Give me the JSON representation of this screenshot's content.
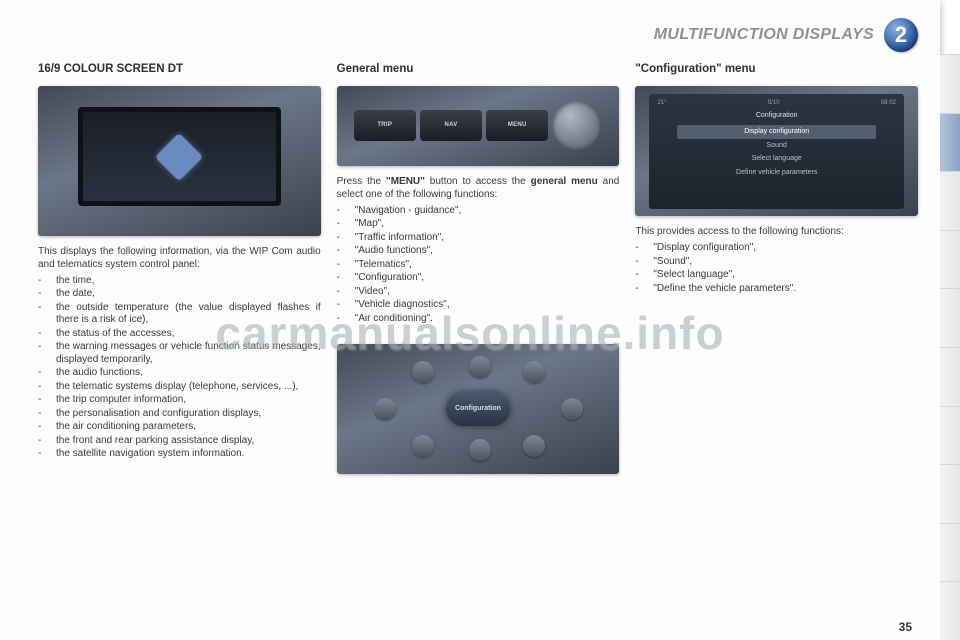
{
  "header": {
    "section_title": "MULTIFUNCTION DISPLAYS",
    "chapter_number": "2"
  },
  "col1": {
    "heading": "16/9 COLOUR SCREEN DT",
    "intro": "This displays the following information, via the WIP Com audio and telematics system control panel:",
    "items": [
      "the time,",
      "the date,",
      "the outside temperature (the value displayed flashes if there is a risk of ice),",
      "the status of the accesses,",
      "the warning messages or vehicle function status messages, displayed temporarily,",
      "the audio functions,",
      "the telematic systems display (telephone, services, ...),",
      "the trip computer information,",
      "the personalisation and configuration displays,",
      "the air conditioning parameters,",
      "the front and rear parking assistance display,",
      "the satellite navigation system information."
    ]
  },
  "col2": {
    "heading": "General menu",
    "btn_labels": [
      "TRIP",
      "NAV",
      "MENU"
    ],
    "intro_parts": {
      "a": "Press the ",
      "b": "\"MENU\"",
      "c": " button to access the ",
      "d": "general menu",
      "e": " and select one of the following functions:"
    },
    "items": [
      "\"Navigation - guidance\",",
      "\"Map\",",
      "\"Traffic information\",",
      "\"Audio functions\",",
      "\"Telematics\",",
      "\"Configuration\",",
      "\"Video\",",
      "\"Vehicle diagnostics\",",
      "\"Air conditioning\"."
    ],
    "circle_label": "Configuration"
  },
  "col3": {
    "heading": "\"Configuration\" menu",
    "screen": {
      "top_left": "21°",
      "top_mid": "5/10",
      "top_right": "08 02",
      "title": "Configuration",
      "rows": [
        "Display configuration",
        "Sound",
        "Select language",
        "Define vehicle parameters"
      ],
      "selected_index": 0
    },
    "intro": "This provides access to the following functions:",
    "items": [
      "\"Display configuration\",",
      "\"Sound\",",
      "\"Select language\",",
      "\"Define the vehicle parameters\"."
    ]
  },
  "page_number": "35",
  "watermark": "carmanualsonline.info",
  "colors": {
    "header_text": "#8f9193",
    "badge_gradient": [
      "#8fb0e0",
      "#2b5ea8",
      "#163a70"
    ],
    "body_text": "#3a3a3a",
    "tab_active": "#8ba0c6"
  }
}
